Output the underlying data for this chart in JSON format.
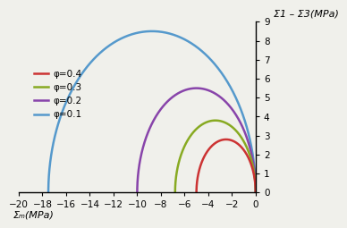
{
  "curves": [
    {
      "phi": 0.1,
      "color": "#5599cc",
      "label": "φ=0.1",
      "x_left": -17.5,
      "y_max": 8.5
    },
    {
      "phi": 0.2,
      "color": "#8844aa",
      "label": "φ=0.2",
      "x_left": -10.0,
      "y_max": 5.5
    },
    {
      "phi": 0.3,
      "color": "#88aa22",
      "label": "φ=0.3",
      "x_left": -6.8,
      "y_max": 3.8
    },
    {
      "phi": 0.4,
      "color": "#cc3333",
      "label": "φ=0.4",
      "x_left": -5.0,
      "y_max": 2.8
    }
  ],
  "xlim": [
    -20,
    0
  ],
  "ylim": [
    0,
    9
  ],
  "xticks": [
    -20,
    -18,
    -16,
    -14,
    -12,
    -10,
    -8,
    -6,
    -4,
    -2,
    0
  ],
  "yticks": [
    0,
    1,
    2,
    3,
    4,
    5,
    6,
    7,
    8,
    9
  ],
  "xlabel": "Σₘ(MPa)",
  "ylabel": "Σ1 – Σ3(MPa)",
  "legend_order": [
    3,
    2,
    1,
    0
  ],
  "bg_color": "#f0f0eb",
  "linewidth": 1.8
}
